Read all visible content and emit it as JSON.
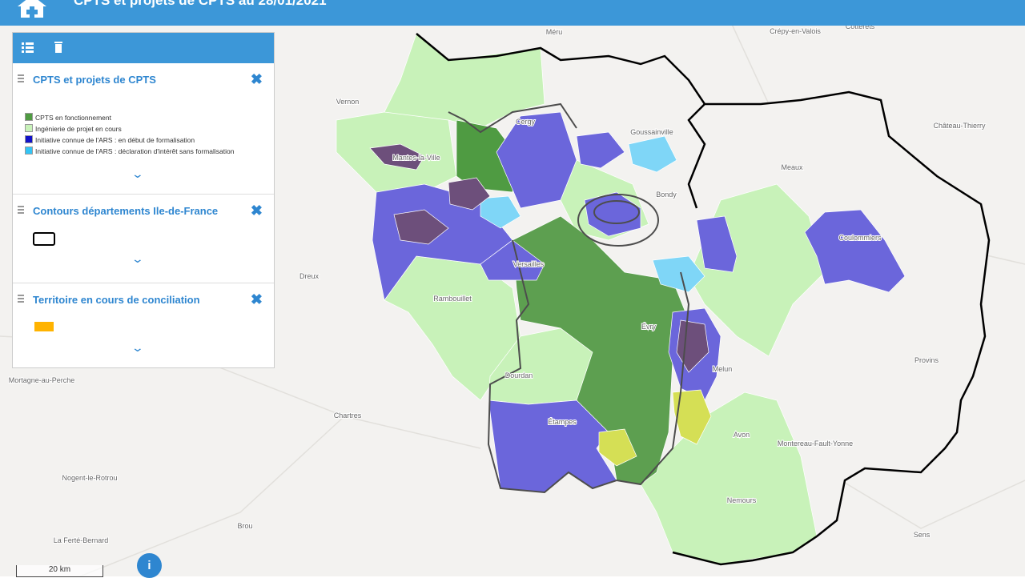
{
  "header": {
    "title": "CPTS et projets de CPTS au 28/01/2021"
  },
  "layers": [
    {
      "title": "CPTS et projets de CPTS",
      "legend": [
        {
          "label": "CPTS en fonctionnement",
          "color": "#4f9b42"
        },
        {
          "label": "Ingénierie de projet en cours",
          "color": "#c8f2b9"
        },
        {
          "label": "Initiative connue de l'ARS : en début de formalisation",
          "color": "#1212c8"
        },
        {
          "label": "Initiative connue de l'ARS : déclaration d'intérêt sans formalisation",
          "color": "#33c4f5"
        }
      ]
    },
    {
      "title": "Contours départements Ile-de-France"
    },
    {
      "title": "Territoire en cours de conciliation"
    }
  ],
  "map": {
    "places": [
      "Méru",
      "Crépy-en-Valois",
      "Cotterêts",
      "Vernon",
      "Cergy",
      "Goussainville",
      "Château-Thierry",
      "Mantes-la-Ville",
      "Meaux",
      "Bondy",
      "Coulommiers",
      "Dreux",
      "Rambouillet",
      "Versailles",
      "Évry",
      "Provins",
      "Melun",
      "Dourdan",
      "Mortagne-au-Perche",
      "Chartres",
      "Étampes",
      "Avon",
      "Montereau-Fault-Yonne",
      "Nogent-le-Rotrou",
      "Nemours",
      "Brou",
      "Sens",
      "La Ferté-Bernard"
    ],
    "scale": "20 km",
    "info_button": "i"
  }
}
